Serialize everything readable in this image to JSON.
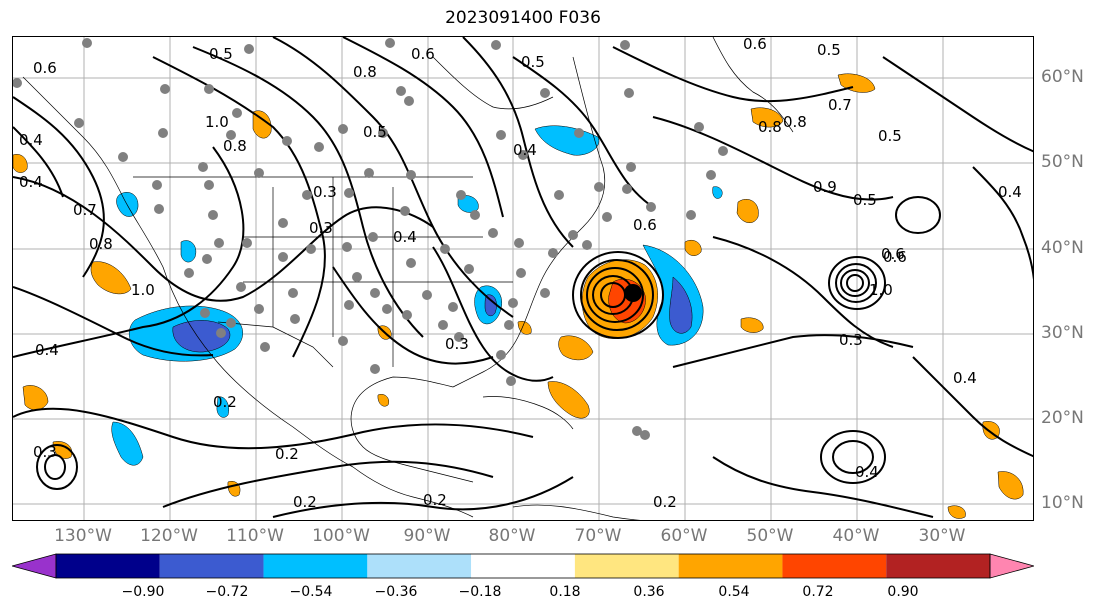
{
  "title": "2023091400 F036",
  "lon_labels": [
    "130°W",
    "120°W",
    "110°W",
    "100°W",
    "90°W",
    "80°W",
    "70°W",
    "60°W",
    "50°W",
    "40°W",
    "30°W"
  ],
  "lat_labels": [
    "60°N",
    "50°N",
    "40°N",
    "30°N",
    "20°N",
    "10°N"
  ],
  "contour_labels": [
    "0.6",
    "0.5",
    "0.8",
    "0.6",
    "0.4",
    "0.5",
    "0.5",
    "0.4",
    "0.6",
    "1.0",
    "0.8",
    "0.7",
    "0.4",
    "0.8",
    "0.3",
    "0.3",
    "0.5",
    "0.6",
    "0.7",
    "0.8",
    "0.4",
    "1.0",
    "0.5",
    "0.9",
    "0.5",
    "0.6",
    "0.4",
    "1.0",
    "0.4",
    "0.3",
    "0.4",
    "0.3",
    "0.2",
    "0.2",
    "0.2",
    "0.2",
    "0.3",
    "0.4",
    "0.2",
    "0.6",
    "0.8"
  ],
  "colorbar": {
    "ticks": [
      "−0.90",
      "−0.72",
      "−0.54",
      "−0.36",
      "−0.18",
      "0.18",
      "0.36",
      "0.54",
      "0.72",
      "0.90"
    ],
    "colors": [
      "#9932CC",
      "#00008B",
      "#3C5BD0",
      "#00BFFF",
      "#ADE0FA",
      "#FFFFFF",
      "#FFE680",
      "#FFA500",
      "#FF4500",
      "#B22222",
      "#FF85B0"
    ]
  },
  "colors": {
    "negative_fill": "#00BFFF",
    "negative_dark": "#3C5BD0",
    "positive_fill": "#FFA500",
    "positive_dark": "#FF4500",
    "stations": "#808080",
    "grid": "#b0b0b0",
    "label": "#777777"
  }
}
